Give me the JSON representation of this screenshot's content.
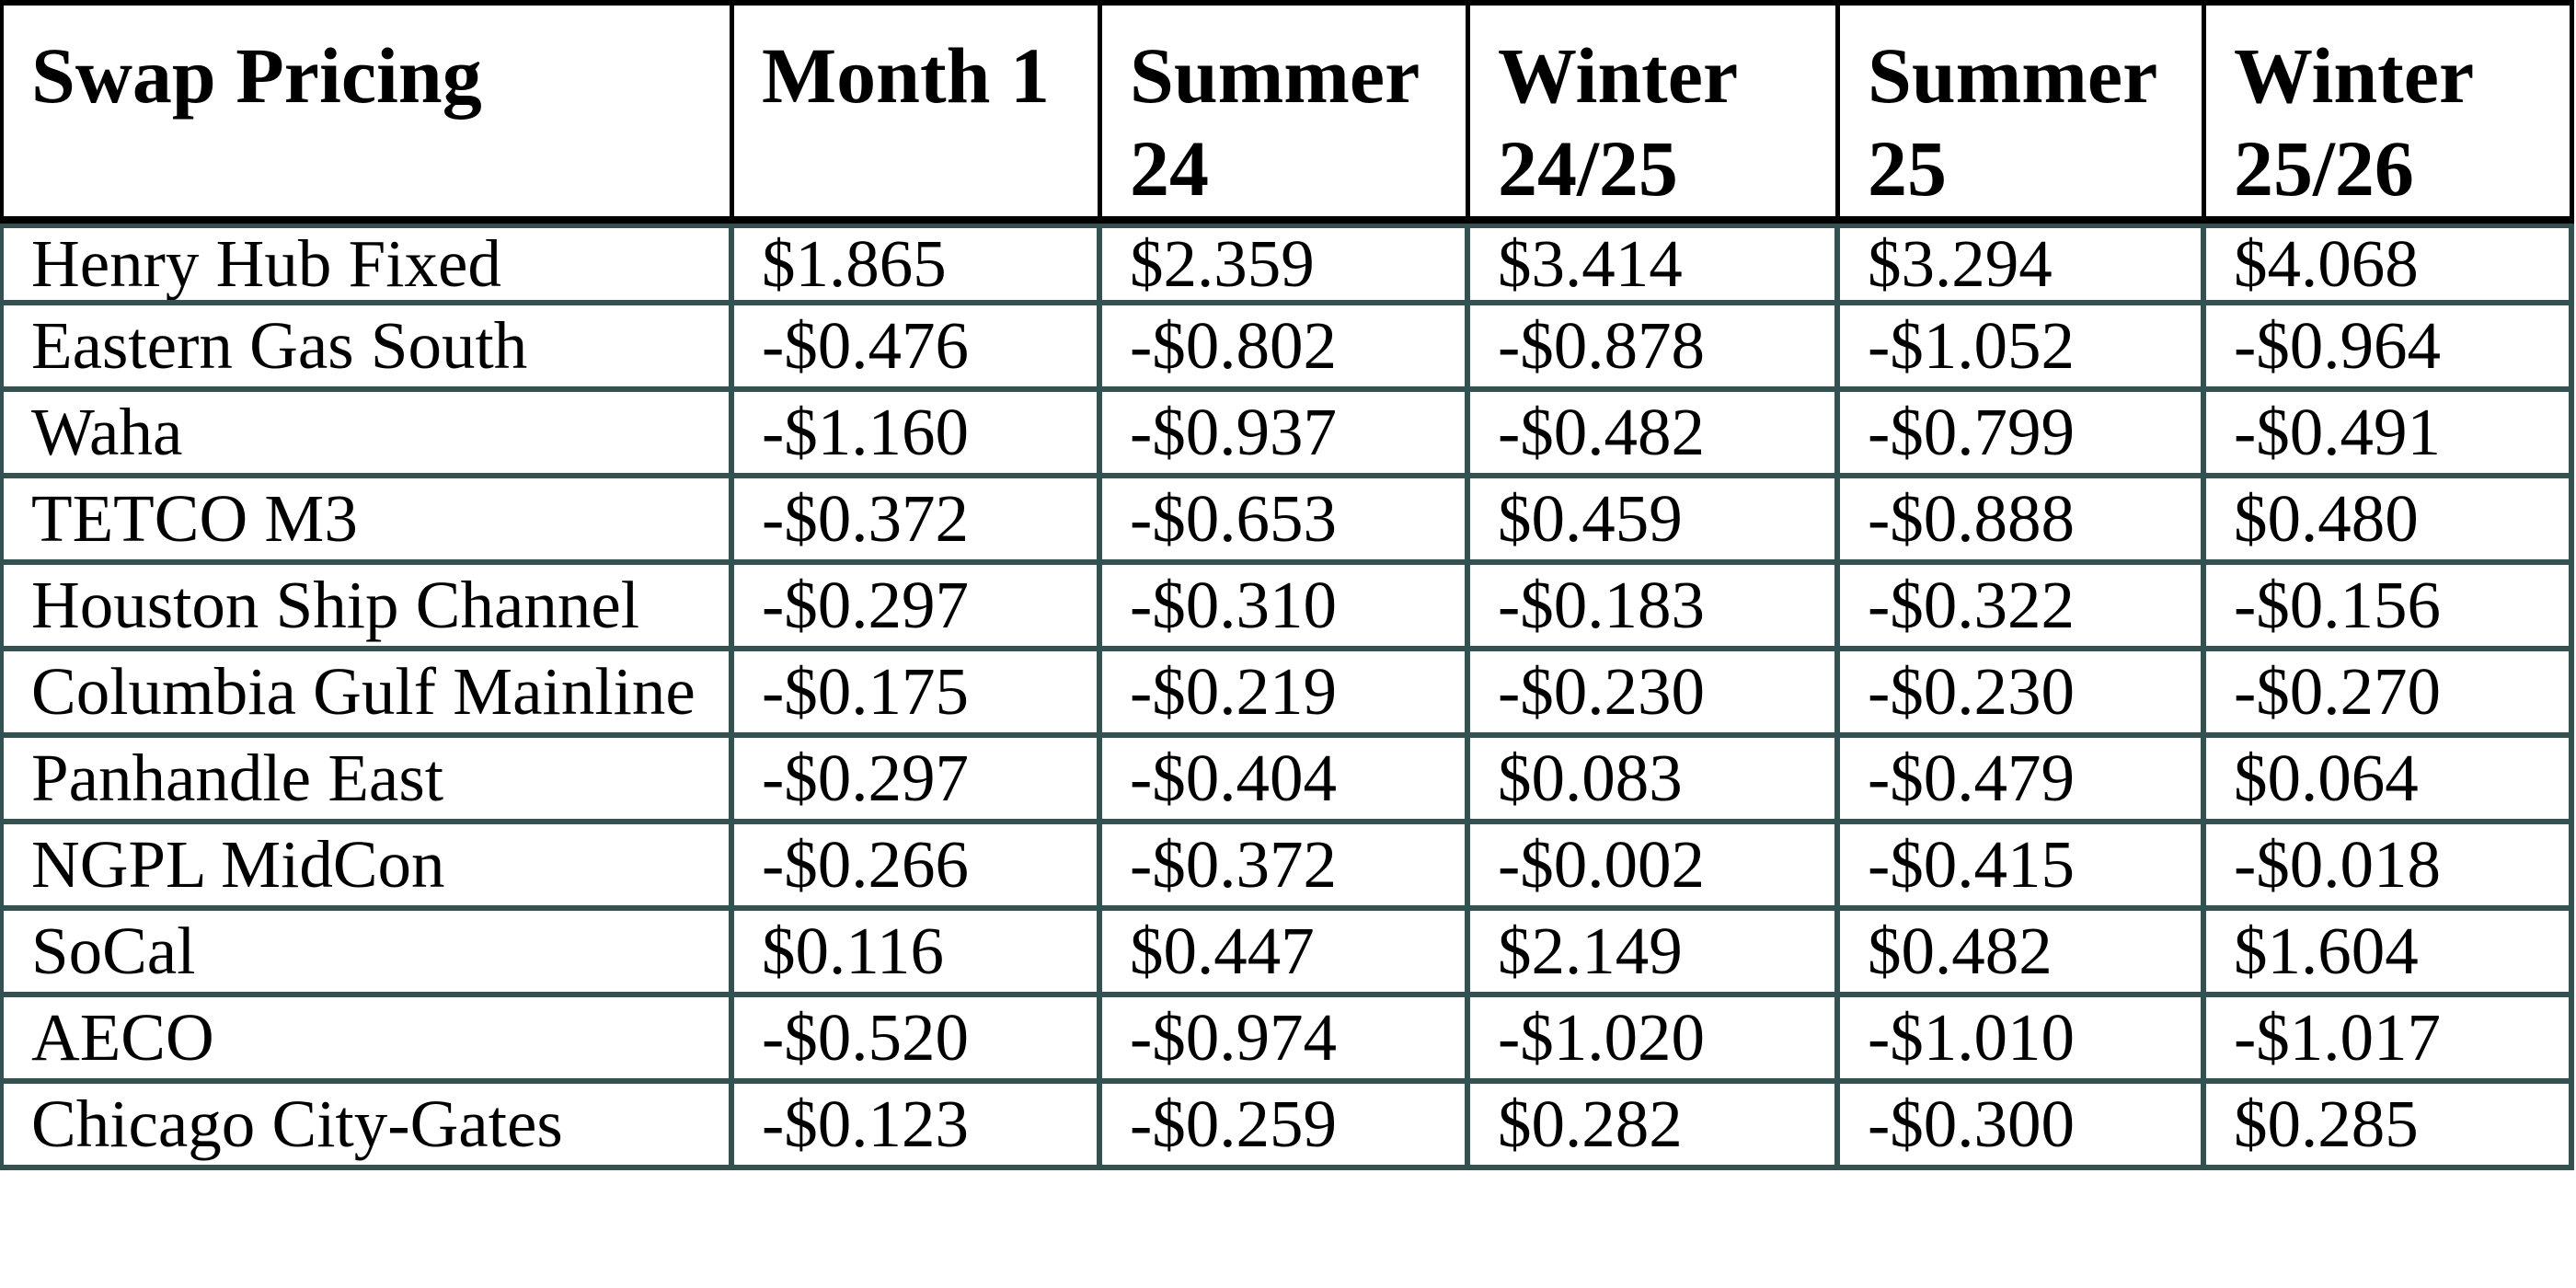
{
  "title": "Swap Pricing",
  "colors": {
    "header_border": "#000000",
    "body_border": "#325150",
    "text": "#000000",
    "background": "#ffffff"
  },
  "table": {
    "columns": [
      "Swap Pricing",
      "Month 1",
      "Summer 24",
      "Winter 24/25",
      "Summer 25",
      "Winter 25/26"
    ],
    "rows": [
      {
        "label": "Henry Hub Fixed",
        "values": [
          "$1.865",
          "$2.359",
          "$3.414",
          "$3.294",
          "$4.068"
        ]
      },
      {
        "label": "Eastern Gas South",
        "values": [
          "-$0.476",
          "-$0.802",
          "-$0.878",
          "-$1.052",
          "-$0.964"
        ]
      },
      {
        "label": "Waha",
        "values": [
          "-$1.160",
          "-$0.937",
          "-$0.482",
          "-$0.799",
          "-$0.491"
        ]
      },
      {
        "label": "TETCO M3",
        "values": [
          "-$0.372",
          "-$0.653",
          "$0.459",
          "-$0.888",
          "$0.480"
        ]
      },
      {
        "label": "Houston Ship Channel",
        "values": [
          "-$0.297",
          "-$0.310",
          "-$0.183",
          "-$0.322",
          "-$0.156"
        ]
      },
      {
        "label": "Columbia Gulf Mainline",
        "values": [
          "-$0.175",
          "-$0.219",
          "-$0.230",
          "-$0.230",
          "-$0.270"
        ]
      },
      {
        "label": "Panhandle East",
        "values": [
          "-$0.297",
          "-$0.404",
          "$0.083",
          "-$0.479",
          "$0.064"
        ]
      },
      {
        "label": "NGPL MidCon",
        "values": [
          "-$0.266",
          "-$0.372",
          "-$0.002",
          "-$0.415",
          "-$0.018"
        ]
      },
      {
        "label": "SoCal",
        "values": [
          "$0.116",
          "$0.447",
          "$2.149",
          "$0.482",
          "$1.604"
        ]
      },
      {
        "label": "AECO",
        "values": [
          "-$0.520",
          "-$0.974",
          "-$1.020",
          "-$1.010",
          "-$1.017"
        ]
      },
      {
        "label": "Chicago City-Gates",
        "values": [
          "-$0.123",
          "-$0.259",
          "$0.282",
          "-$0.300",
          "$0.285"
        ]
      }
    ]
  }
}
